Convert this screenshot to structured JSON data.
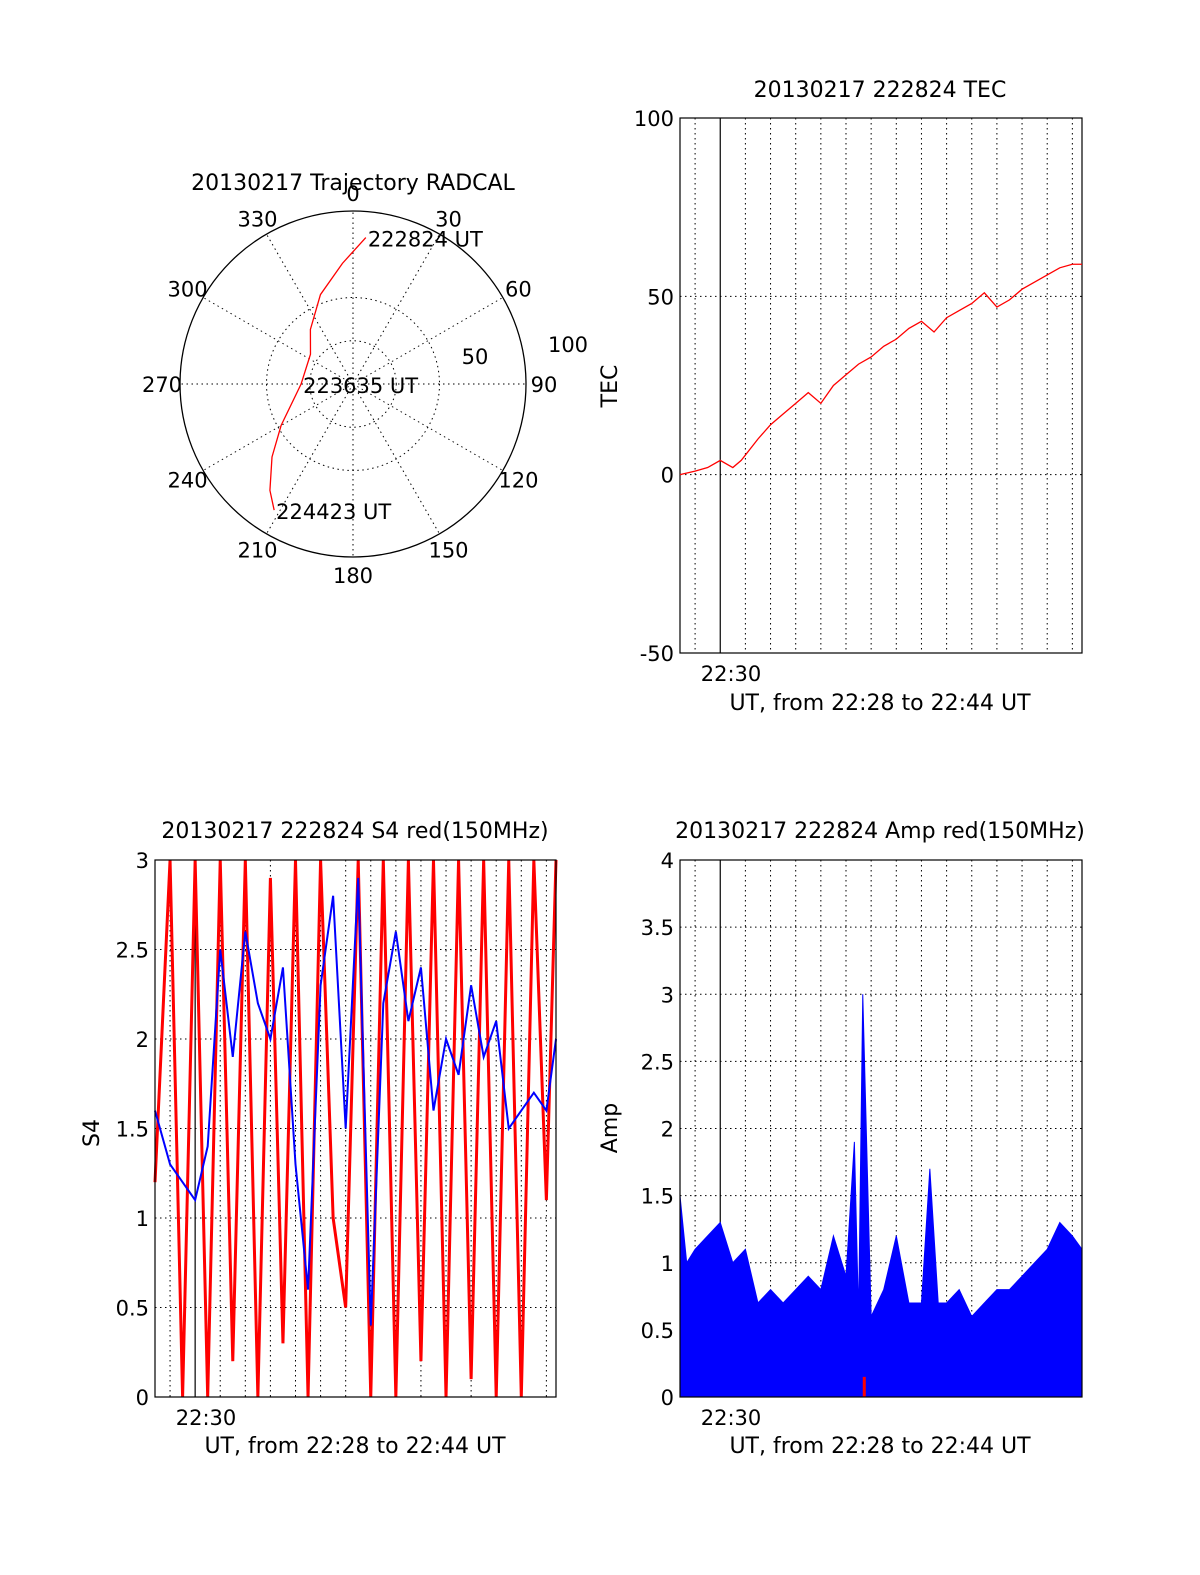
{
  "chart_data": [
    {
      "id": "trajectory",
      "type": "polar",
      "title": "20130217 Trajectory RADCAL",
      "r_max": 100,
      "ring_labels": [
        "50",
        "100"
      ],
      "angle_labels": [
        "0",
        "30",
        "60",
        "90",
        "120",
        "150",
        "180",
        "210",
        "240",
        "270",
        "300",
        "330"
      ],
      "trace_color": "#ff0000",
      "trajectory": {
        "azimuth_deg": [
          5,
          355,
          340,
          322,
          305,
          270,
          240,
          228,
          218,
          212
        ],
        "radius": [
          85,
          70,
          55,
          40,
          30,
          30,
          48,
          63,
          78,
          86
        ]
      },
      "annotations": [
        {
          "text": "222824 UT",
          "azimuth_deg": 5,
          "radius": 85
        },
        {
          "text": "223635 UT",
          "azimuth_deg": 270,
          "radius": 30
        },
        {
          "text": "224423 UT",
          "azimuth_deg": 212,
          "radius": 86
        }
      ]
    },
    {
      "id": "tec",
      "type": "line",
      "title": "20130217 222824 TEC",
      "ylabel": "TEC",
      "xlabel": "UT, from 22:28 to 22:44 UT",
      "x_tick_label": "22:30",
      "xlim": [
        "22:28:24",
        "22:44:23"
      ],
      "ylim": [
        -50,
        100
      ],
      "y_ticks": [
        -50,
        0,
        50,
        100
      ],
      "grid": true,
      "series": [
        {
          "color": "#ff0000",
          "x": [
            "22:28:24",
            "22:29:00",
            "22:29:30",
            "22:30:00",
            "22:30:30",
            "22:30:50",
            "22:31:30",
            "22:32:00",
            "22:32:30",
            "22:33:00",
            "22:33:30",
            "22:34:00",
            "22:34:30",
            "22:35:00",
            "22:35:30",
            "22:36:00",
            "22:36:30",
            "22:37:00",
            "22:37:30",
            "22:38:00",
            "22:38:30",
            "22:39:00",
            "22:39:30",
            "22:40:00",
            "22:40:30",
            "22:41:00",
            "22:41:30",
            "22:42:00",
            "22:42:30",
            "22:43:00",
            "22:43:30",
            "22:44:00",
            "22:44:23"
          ],
          "y": [
            0,
            1,
            2,
            4,
            2,
            4,
            10,
            14,
            17,
            20,
            23,
            20,
            25,
            28,
            31,
            33,
            36,
            38,
            41,
            43,
            40,
            44,
            46,
            48,
            51,
            47,
            49,
            52,
            54,
            56,
            58,
            59,
            59
          ]
        }
      ]
    },
    {
      "id": "s4",
      "type": "line",
      "title": "20130217 222824 S4 red(150MHz)",
      "ylabel": "S4",
      "xlabel": "UT, from 22:28 to 22:44 UT",
      "x_tick_label": "22:30",
      "xlim": [
        "22:28:24",
        "22:44:23"
      ],
      "ylim": [
        0,
        3
      ],
      "y_ticks": [
        0,
        0.5,
        1,
        1.5,
        2,
        2.5,
        3
      ],
      "grid": true,
      "series": [
        {
          "color": "#ff0000",
          "x": [
            "22:28:24",
            "22:29:00",
            "22:29:30",
            "22:30:00",
            "22:30:30",
            "22:31:00",
            "22:31:30",
            "22:32:00",
            "22:32:30",
            "22:33:00",
            "22:33:30",
            "22:34:00",
            "22:34:30",
            "22:35:00",
            "22:35:30",
            "22:36:00",
            "22:36:30",
            "22:37:00",
            "22:37:30",
            "22:38:00",
            "22:38:30",
            "22:39:00",
            "22:39:30",
            "22:40:00",
            "22:40:30",
            "22:41:00",
            "22:41:30",
            "22:42:00",
            "22:42:30",
            "22:43:00",
            "22:43:30",
            "22:44:00",
            "22:44:23"
          ],
          "y": [
            1.2,
            3.0,
            0.0,
            3.0,
            0.0,
            3.0,
            0.2,
            3.0,
            0.0,
            2.9,
            0.3,
            3.0,
            0.0,
            3.0,
            1.0,
            0.5,
            3.0,
            0.0,
            3.0,
            0.0,
            3.0,
            0.2,
            3.0,
            0.0,
            3.0,
            0.1,
            3.0,
            0.0,
            3.0,
            0.0,
            3.0,
            1.1,
            3.0
          ]
        },
        {
          "color": "#0000ff",
          "x": [
            "22:28:24",
            "22:29:00",
            "22:29:30",
            "22:30:00",
            "22:30:30",
            "22:31:00",
            "22:31:30",
            "22:32:00",
            "22:32:30",
            "22:33:00",
            "22:33:30",
            "22:34:00",
            "22:34:30",
            "22:35:00",
            "22:35:30",
            "22:36:00",
            "22:36:30",
            "22:37:00",
            "22:37:30",
            "22:38:00",
            "22:38:30",
            "22:39:00",
            "22:39:30",
            "22:40:00",
            "22:40:30",
            "22:41:00",
            "22:41:30",
            "22:42:00",
            "22:42:30",
            "22:43:00",
            "22:43:30",
            "22:44:00",
            "22:44:23"
          ],
          "y": [
            1.6,
            1.3,
            1.2,
            1.1,
            1.4,
            2.5,
            1.9,
            2.6,
            2.2,
            2.0,
            2.4,
            1.3,
            0.6,
            2.3,
            2.8,
            1.5,
            2.9,
            0.4,
            2.2,
            2.6,
            2.1,
            2.4,
            1.6,
            2.0,
            1.8,
            2.3,
            1.9,
            2.1,
            1.5,
            1.6,
            1.7,
            1.6,
            2.0
          ]
        }
      ]
    },
    {
      "id": "amp",
      "type": "area",
      "title": "20130217 222824 Amp red(150MHz)",
      "ylabel": "Amp",
      "xlabel": "UT, from 22:28 to 22:44 UT",
      "x_tick_label": "22:30",
      "xlim": [
        "22:28:24",
        "22:44:23"
      ],
      "ylim": [
        0,
        4
      ],
      "y_ticks": [
        0,
        0.5,
        1,
        1.5,
        2,
        2.5,
        3,
        3.5,
        4
      ],
      "grid": true,
      "series": [
        {
          "color": "#0000ff",
          "x": [
            "22:28:24",
            "22:28:40",
            "22:29:00",
            "22:29:30",
            "22:30:00",
            "22:30:30",
            "22:31:00",
            "22:31:30",
            "22:32:00",
            "22:32:30",
            "22:33:00",
            "22:33:30",
            "22:34:00",
            "22:34:30",
            "22:35:00",
            "22:35:20",
            "22:35:30",
            "22:35:40",
            "22:36:00",
            "22:36:30",
            "22:37:00",
            "22:37:30",
            "22:38:00",
            "22:38:20",
            "22:38:40",
            "22:39:00",
            "22:39:30",
            "22:40:00",
            "22:40:30",
            "22:41:00",
            "22:41:30",
            "22:42:00",
            "22:42:30",
            "22:43:00",
            "22:43:30",
            "22:44:00",
            "22:44:23"
          ],
          "y": [
            1.5,
            1.0,
            1.1,
            1.2,
            1.3,
            1.0,
            1.1,
            0.7,
            0.8,
            0.7,
            0.8,
            0.9,
            0.8,
            1.2,
            0.9,
            1.9,
            0.6,
            3.0,
            0.6,
            0.8,
            1.2,
            0.7,
            0.7,
            1.7,
            0.7,
            0.7,
            0.8,
            0.6,
            0.7,
            0.8,
            0.8,
            0.9,
            1.0,
            1.1,
            1.3,
            1.2,
            1.1
          ]
        },
        {
          "color": "#ff0000",
          "x": [
            "22:35:40",
            "22:35:45"
          ],
          "y": [
            0.15,
            0.15
          ]
        }
      ]
    }
  ]
}
